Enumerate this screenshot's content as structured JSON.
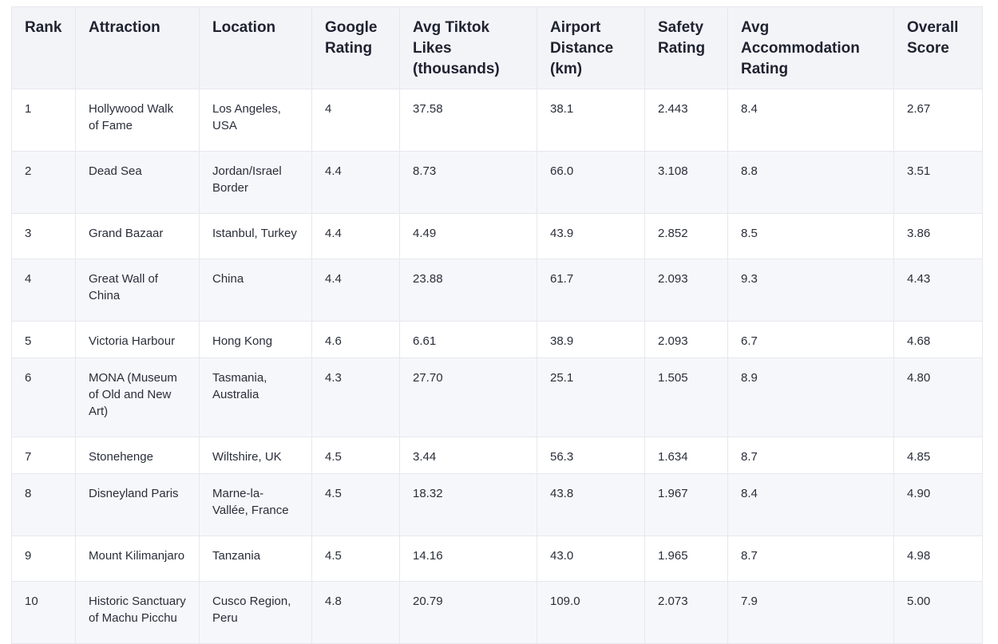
{
  "table": {
    "headers": [
      "Rank",
      "Attraction",
      "Location",
      "Google Rating",
      "Avg Tiktok Likes (thousands)",
      "Airport Distance (km)",
      "Safety Rating",
      "Avg Accommodation Rating",
      "Overall Score"
    ],
    "rows": [
      [
        "1",
        "Hollywood Walk of Fame",
        "Los Angeles, USA",
        "4",
        "37.58",
        "38.1",
        "2.443",
        "8.4",
        "2.67"
      ],
      [
        "2",
        "Dead Sea",
        "Jordan/Israel Border",
        "4.4",
        "8.73",
        "66.0",
        "3.108",
        "8.8",
        "3.51"
      ],
      [
        "3",
        "Grand Bazaar",
        "Istanbul, Turkey",
        "4.4",
        "4.49",
        "43.9",
        "2.852",
        "8.5",
        "3.86"
      ],
      [
        "4",
        "Great Wall of China",
        "China",
        "4.4",
        "23.88",
        "61.7",
        "2.093",
        "9.3",
        "4.43"
      ],
      [
        "5",
        "Victoria Harbour",
        "Hong Kong",
        "4.6",
        "6.61",
        "38.9",
        "2.093",
        "6.7",
        "4.68"
      ],
      [
        "6",
        "MONA (Museum of Old and New Art)",
        "Tasmania, Australia",
        "4.3",
        "27.70",
        "25.1",
        "1.505",
        "8.9",
        "4.80"
      ],
      [
        "7",
        "Stonehenge",
        "Wiltshire, UK",
        "4.5",
        "3.44",
        "56.3",
        "1.634",
        "8.7",
        "4.85"
      ],
      [
        "8",
        "Disneyland Paris",
        "Marne-la-Vallée, France",
        "4.5",
        "18.32",
        "43.8",
        "1.967",
        "8.4",
        "4.90"
      ],
      [
        "9",
        "Mount Kilimanjaro",
        "Tanzania",
        "4.5",
        "14.16",
        "43.0",
        "1.965",
        "8.7",
        "4.98"
      ],
      [
        "10",
        "Historic Sanctuary of Machu Picchu",
        "Cusco Region, Peru",
        "4.8",
        "20.79",
        "109.0",
        "2.073",
        "7.9",
        "5.00"
      ]
    ]
  }
}
